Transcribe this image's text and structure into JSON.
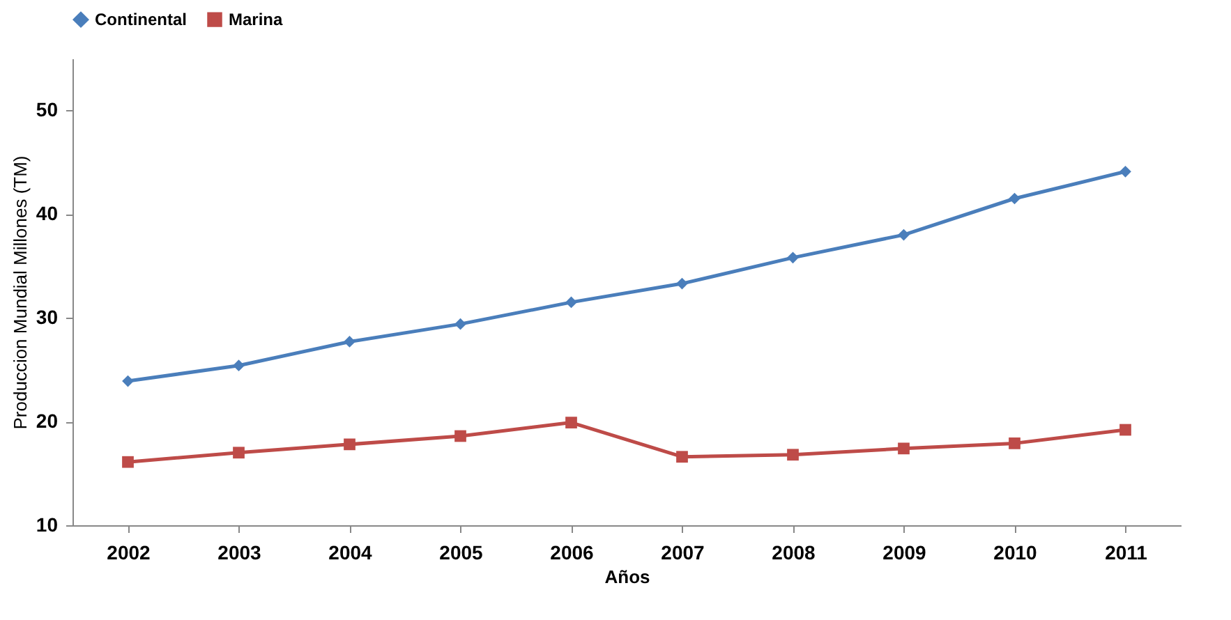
{
  "chart_data": {
    "type": "line",
    "xlabel": "Años",
    "ylabel": "Produccion Mundial Millones (TM)",
    "categories": [
      "2002",
      "2003",
      "2004",
      "2005",
      "2006",
      "2007",
      "2008",
      "2009",
      "2010",
      "2011"
    ],
    "series": [
      {
        "name": "Continental",
        "color": "#4a7ebb",
        "marker": "diamond",
        "values": [
          23.9,
          25.4,
          27.7,
          29.4,
          31.5,
          33.3,
          35.8,
          38.0,
          41.5,
          44.1
        ]
      },
      {
        "name": "Marina",
        "color": "#be4b48",
        "marker": "square",
        "values": [
          16.1,
          17.0,
          17.8,
          18.6,
          19.9,
          16.6,
          16.8,
          17.4,
          17.9,
          19.2
        ]
      }
    ],
    "ylim": [
      10,
      55
    ],
    "yticks": [
      10,
      20,
      30,
      40,
      50
    ],
    "grid": false,
    "legend": "top",
    "line_style": "solid"
  }
}
